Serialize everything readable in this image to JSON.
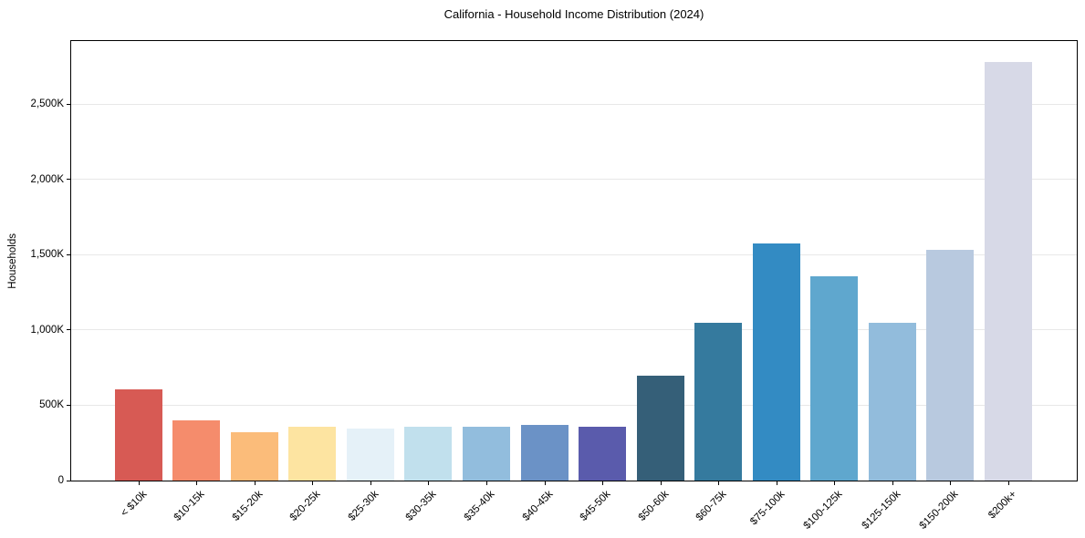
{
  "chart_data": {
    "type": "bar",
    "title": "California - Household Income Distribution (2024)",
    "xlabel": "",
    "ylabel": "Households",
    "categories": [
      "< $10k",
      "$10-15k",
      "$15-20k",
      "$20-25k",
      "$25-30k",
      "$30-35k",
      "$35-40k",
      "$40-45k",
      "$45-50k",
      "$50-60k",
      "$60-75k",
      "$75-100k",
      "$100-125k",
      "$125-150k",
      "$150-200k",
      "$200k+"
    ],
    "values": [
      605,
      400,
      320,
      360,
      345,
      355,
      355,
      368,
      355,
      695,
      1050,
      1575,
      1355,
      1050,
      1530,
      2780
    ],
    "values_unit": "K",
    "ylim": [
      0,
      2920
    ],
    "yticks": [
      0,
      500,
      1000,
      1500,
      2000,
      2500
    ],
    "ytick_labels": [
      "0",
      "500K",
      "1,000K",
      "1,500K",
      "2,000K",
      "2,500K"
    ],
    "grid": "horizontal",
    "legend": "none",
    "bar_colors": [
      "#d75a54",
      "#f58c6c",
      "#fbbc7a",
      "#fde4a1",
      "#e5f1f8",
      "#c1e0ed",
      "#92bddd",
      "#6b92c6",
      "#5a5bac",
      "#355f78",
      "#357a9e",
      "#338bc3",
      "#5fa7ce",
      "#92bcdc",
      "#b8c9df",
      "#d7d9e7"
    ],
    "gridline_color": "#e8e8e8",
    "axis_color": "#000000",
    "text_color": "#000000",
    "background_color": "#ffffff"
  }
}
